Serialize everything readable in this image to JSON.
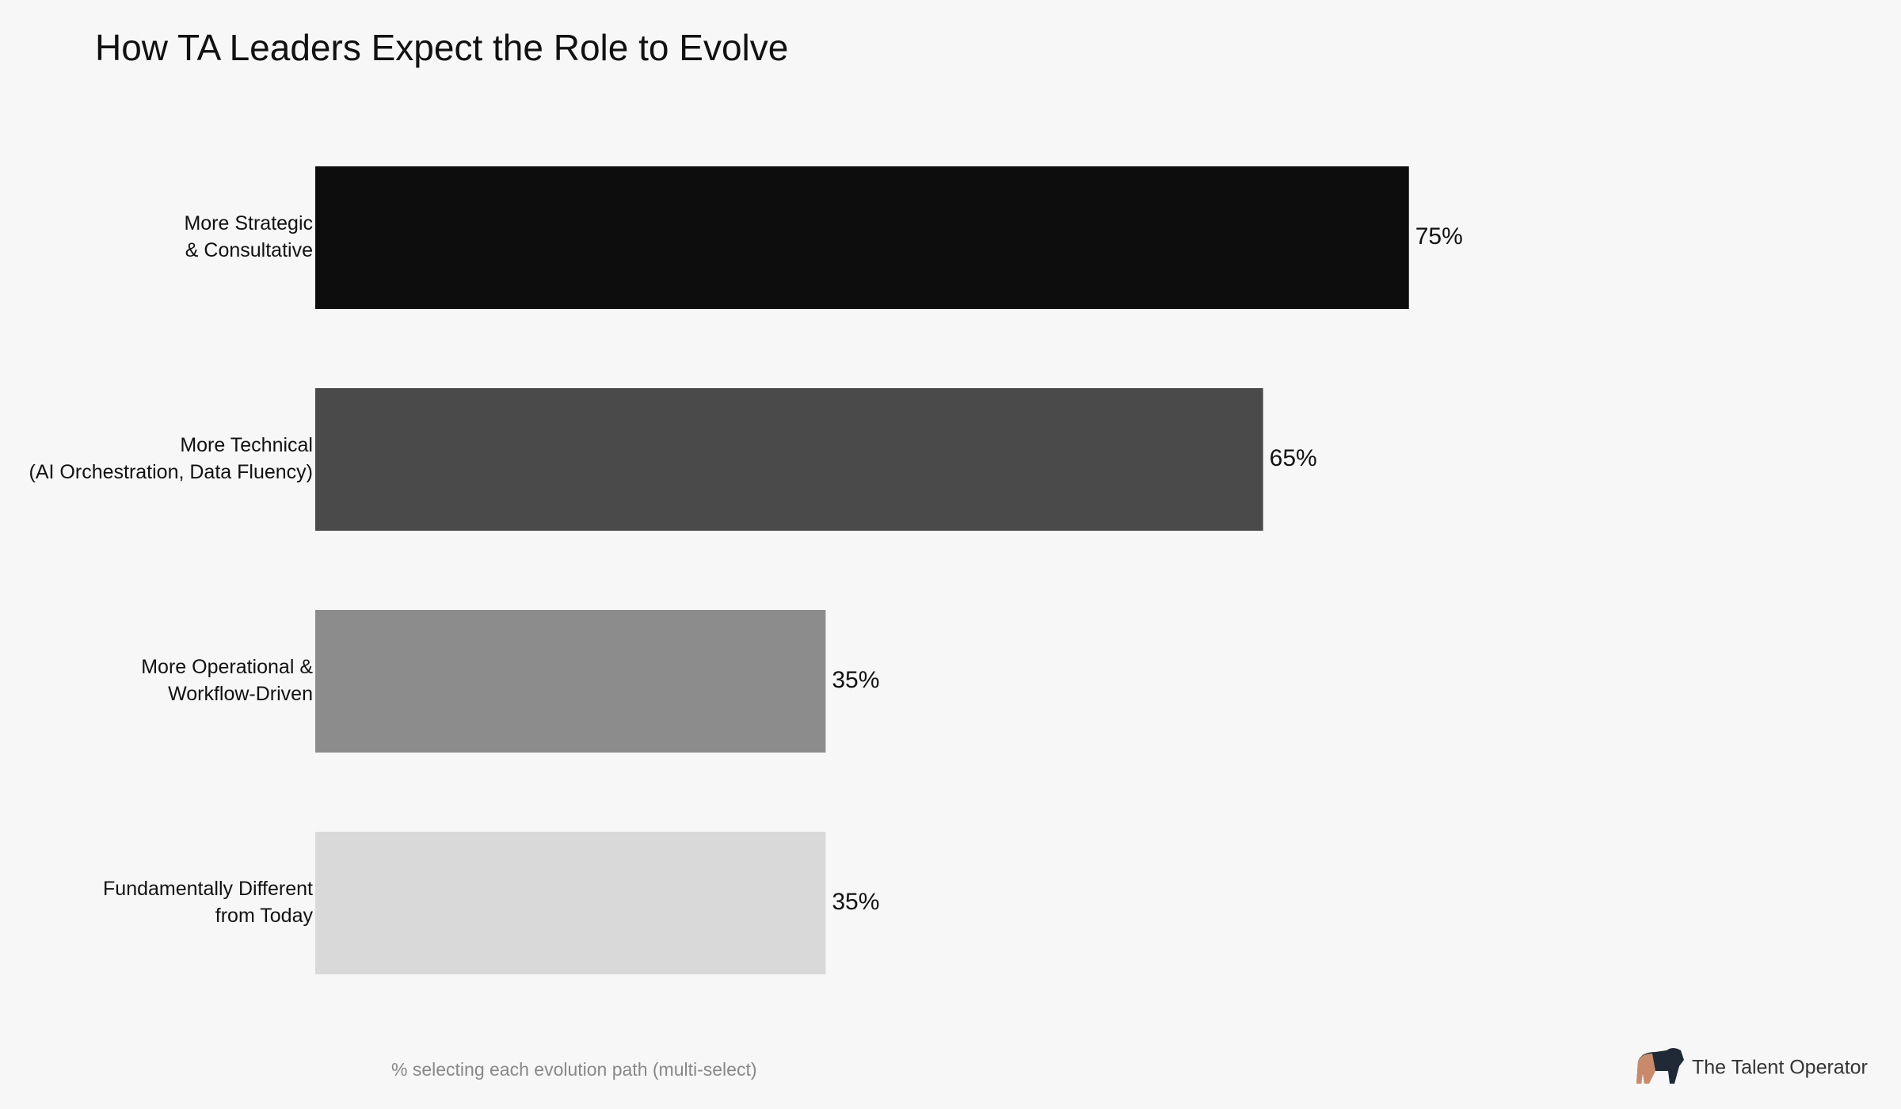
{
  "chart_data": {
    "type": "bar",
    "orientation": "horizontal",
    "title": "How TA Leaders Expect the Role to Evolve",
    "categories": [
      "More Strategic\n& Consultative",
      "More Technical\n(AI Orchestration, Data Fluency)",
      "More Operational &\nWorkflow-Driven",
      "Fundamentally Different\nfrom Today"
    ],
    "values": [
      75,
      65,
      35,
      35
    ],
    "value_labels": [
      "75%",
      "65%",
      "35%",
      "35%"
    ],
    "colors": [
      "#0d0d0d",
      "#4a4a4a",
      "#8c8c8c",
      "#d9d9d9"
    ],
    "footnote": "% selecting each evolution path (multi-select)",
    "brand": "The Talent Operator"
  }
}
